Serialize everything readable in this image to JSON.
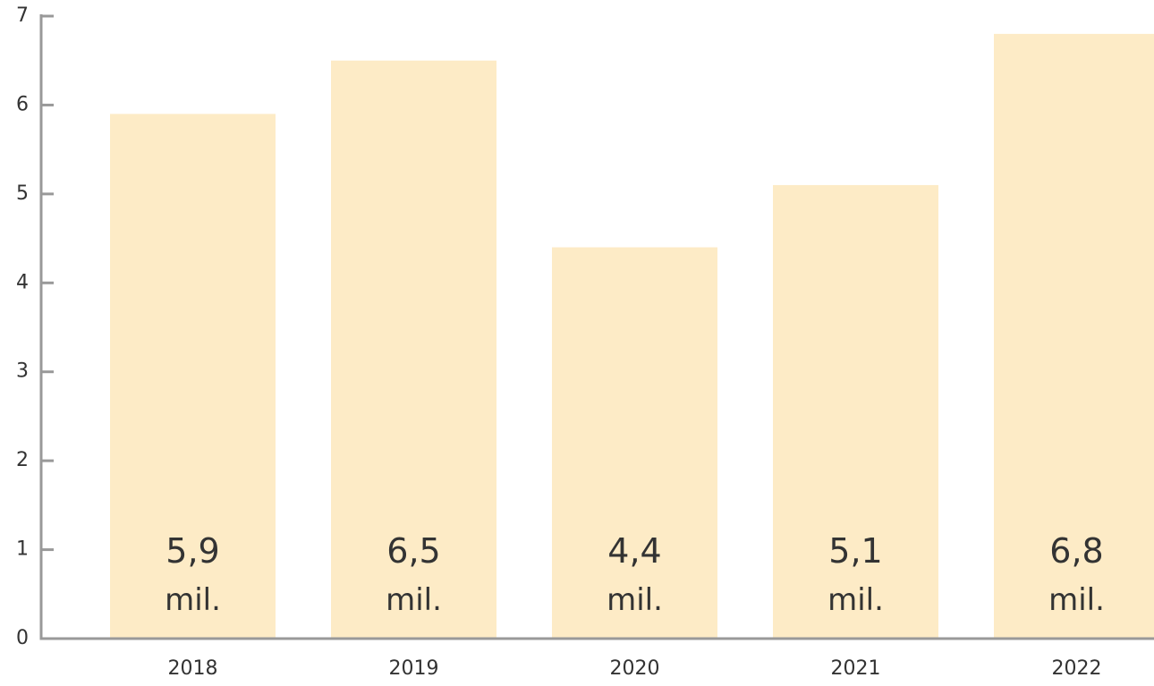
{
  "chart_data": {
    "type": "bar",
    "categories": [
      "2018",
      "2019",
      "2020",
      "2021",
      "2022"
    ],
    "values": [
      5.9,
      6.5,
      4.4,
      5.1,
      6.8
    ],
    "value_labels": [
      "5,9 mil.",
      "6,5 mil.",
      "4,4 mil.",
      "5,1 mil.",
      "6,8 mil."
    ],
    "color": "#fdebc6",
    "ylim": [
      0,
      7
    ],
    "yticks": [
      0,
      1,
      2,
      3,
      4,
      5,
      6,
      7
    ],
    "grid": false
  }
}
